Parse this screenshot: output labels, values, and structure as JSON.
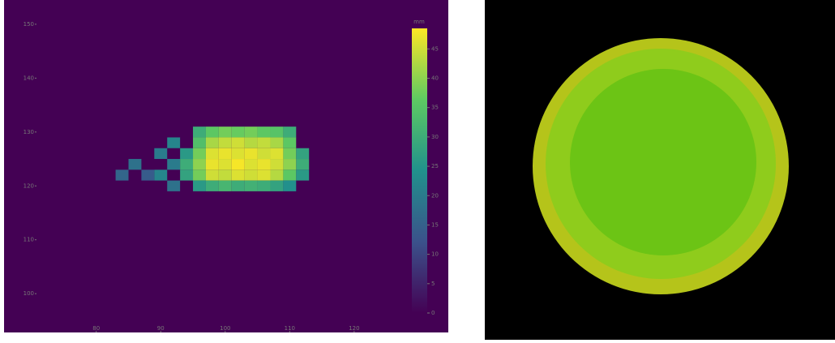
{
  "chart_data": {
    "type": "heatmap",
    "colormap": "viridis",
    "x": [
      84,
      86,
      88,
      90,
      92,
      94,
      96,
      98,
      100,
      102,
      104,
      106,
      108,
      110,
      112
    ],
    "y": [
      130,
      128,
      126,
      124,
      122,
      120
    ],
    "z": [
      [
        null,
        null,
        null,
        null,
        null,
        null,
        30,
        36,
        38,
        37,
        38,
        36,
        35,
        30,
        null
      ],
      [
        null,
        null,
        null,
        null,
        22,
        null,
        34,
        42,
        44,
        45,
        43,
        44,
        42,
        36,
        null
      ],
      [
        null,
        null,
        null,
        20,
        null,
        26,
        38,
        46,
        47,
        46,
        47,
        45,
        46,
        38,
        28
      ],
      [
        null,
        18,
        null,
        null,
        20,
        30,
        40,
        47,
        46,
        48,
        46,
        47,
        45,
        40,
        30
      ],
      [
        16,
        null,
        14,
        22,
        null,
        28,
        38,
        45,
        44,
        46,
        45,
        46,
        43,
        36,
        26
      ],
      [
        null,
        null,
        null,
        null,
        18,
        null,
        26,
        30,
        32,
        30,
        31,
        30,
        28,
        24,
        null
      ]
    ],
    "xlim": [
      65.7,
      134.6
    ],
    "ylim": [
      92.8,
      154.5
    ],
    "xticks": [
      80,
      90,
      100,
      110,
      120
    ],
    "yticks": [
      100,
      110,
      120,
      130,
      140,
      150
    ],
    "colorbar_label": "mm",
    "zlim": [
      0,
      48.5
    ],
    "zticks": [
      0,
      5,
      10,
      15,
      20,
      25,
      30,
      35,
      40,
      45
    ]
  }
}
